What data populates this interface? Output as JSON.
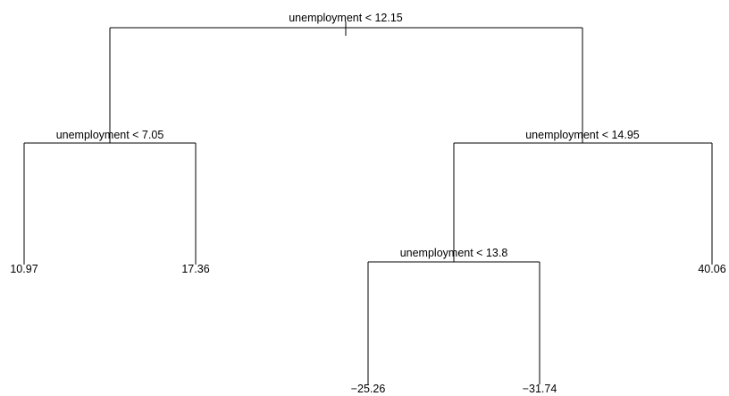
{
  "tree": {
    "splits": {
      "root": "unemployment < 12.15",
      "left": "unemployment < 7.05",
      "right": "unemployment < 14.95",
      "right_left": "unemployment < 13.8"
    },
    "leaves": {
      "ll": "10.97",
      "lr": "17.36",
      "rll": "−25.26",
      "rlr": "−31.74",
      "rr": "40.06"
    }
  }
}
